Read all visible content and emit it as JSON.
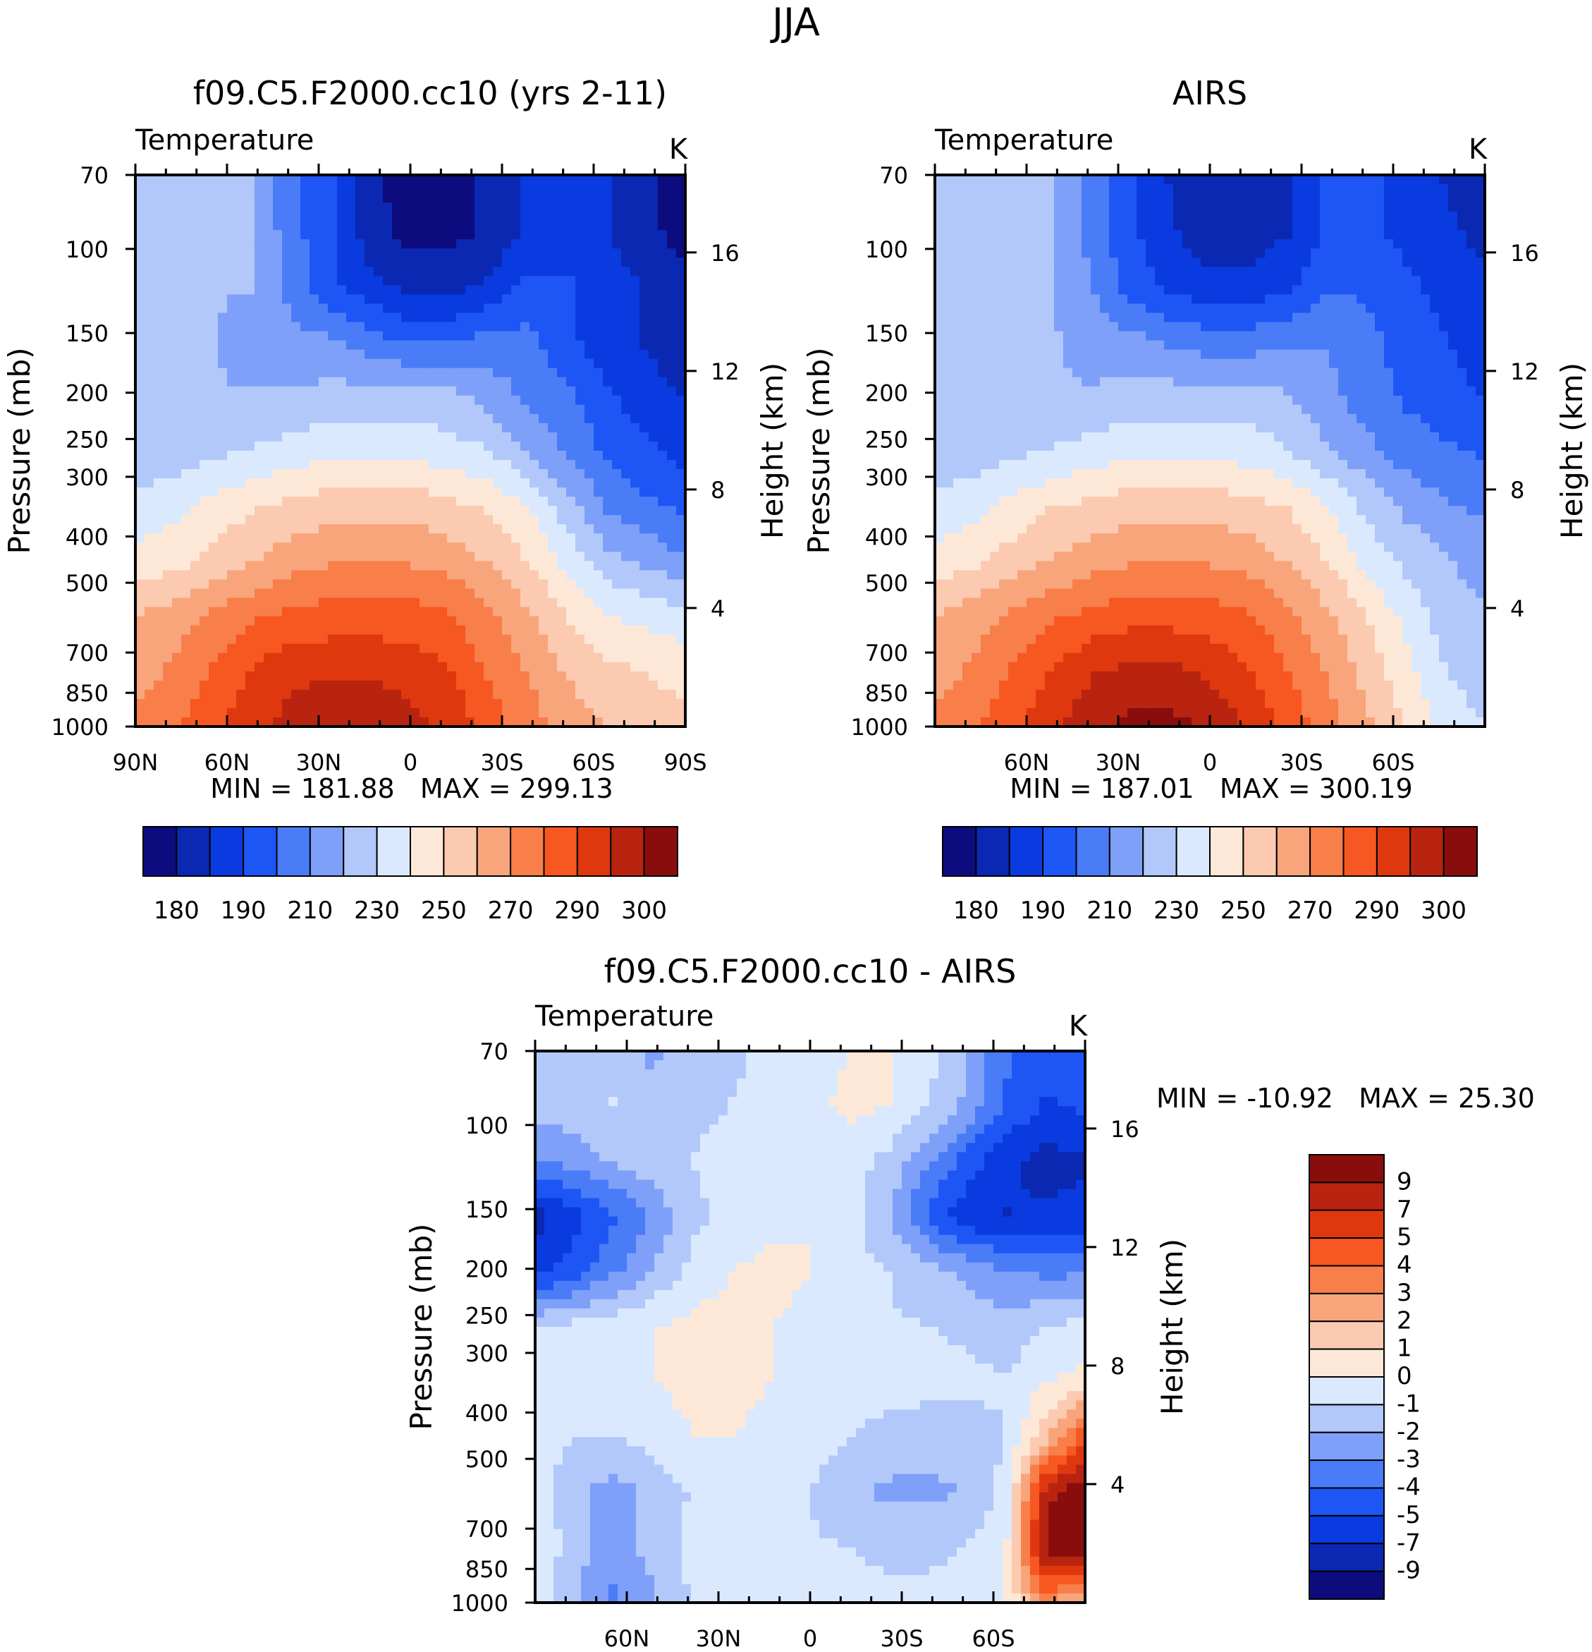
{
  "season": "JJA",
  "chart_data": [
    {
      "type": "heatmap",
      "title": "f09.C5.F2000.cc10 (yrs 2-11)",
      "subtitle": "Temperature",
      "units": "K",
      "xlabel": "",
      "ylabel": "Pressure (mb)",
      "ylabel_right": "Height (km)",
      "xticks": [
        "90N",
        "60N",
        "30N",
        "0",
        "30S",
        "60S",
        "90S"
      ],
      "yticks": [
        "70",
        "100",
        "150",
        "200",
        "250",
        "300",
        "400",
        "500",
        "700",
        "850",
        "1000"
      ],
      "yticks_right": [
        "16",
        "12",
        "8",
        "4"
      ],
      "stats": "MIN = 181.88   MAX = 299.13",
      "colorbar_labels": [
        "180",
        "190",
        "210",
        "230",
        "250",
        "270",
        "290",
        "300"
      ],
      "colorbar_colors": [
        "#0c0c7e",
        "#0a28b2",
        "#0a3be0",
        "#1e56f5",
        "#4a7cf7",
        "#7ea0f8",
        "#b2c8fb",
        "#dae9fe",
        "#fde8d8",
        "#fbcab0",
        "#f9a57c",
        "#f87e4a",
        "#f75720",
        "#e0380e",
        "#b82410",
        "#8a0d0d"
      ],
      "field": [
        [
          0.38,
          0.38,
          0.38,
          0.38,
          0.26,
          0.2,
          0.07,
          0.04,
          0.04,
          0.07,
          0.13,
          0.15,
          0.13,
          0.08,
          0.0
        ],
        [
          0.38,
          0.38,
          0.38,
          0.38,
          0.27,
          0.2,
          0.09,
          0.04,
          0.04,
          0.07,
          0.14,
          0.15,
          0.13,
          0.08,
          0.03
        ],
        [
          0.38,
          0.38,
          0.38,
          0.38,
          0.29,
          0.2,
          0.14,
          0.1,
          0.1,
          0.14,
          0.2,
          0.2,
          0.15,
          0.12,
          0.08
        ],
        [
          0.38,
          0.38,
          0.38,
          0.33,
          0.33,
          0.32,
          0.27,
          0.24,
          0.24,
          0.27,
          0.27,
          0.2,
          0.15,
          0.12,
          0.09
        ],
        [
          0.38,
          0.38,
          0.38,
          0.38,
          0.38,
          0.4,
          0.4,
          0.4,
          0.4,
          0.35,
          0.3,
          0.26,
          0.2,
          0.15,
          0.12
        ],
        [
          0.38,
          0.4,
          0.42,
          0.44,
          0.46,
          0.48,
          0.48,
          0.48,
          0.46,
          0.44,
          0.37,
          0.3,
          0.24,
          0.2,
          0.16
        ],
        [
          0.46,
          0.48,
          0.52,
          0.56,
          0.58,
          0.6,
          0.6,
          0.6,
          0.58,
          0.55,
          0.5,
          0.4,
          0.3,
          0.26,
          0.24
        ],
        [
          0.52,
          0.54,
          0.58,
          0.62,
          0.66,
          0.68,
          0.68,
          0.68,
          0.66,
          0.62,
          0.56,
          0.48,
          0.4,
          0.36,
          0.32
        ],
        [
          0.62,
          0.66,
          0.7,
          0.74,
          0.77,
          0.78,
          0.78,
          0.78,
          0.76,
          0.7,
          0.64,
          0.56,
          0.5,
          0.48,
          0.46
        ],
        [
          0.66,
          0.7,
          0.76,
          0.82,
          0.86,
          0.86,
          0.86,
          0.85,
          0.82,
          0.74,
          0.68,
          0.62,
          0.58,
          0.56,
          0.54
        ],
        [
          0.7,
          0.74,
          0.8,
          0.86,
          0.9,
          0.94,
          0.94,
          0.9,
          0.86,
          0.78,
          0.72,
          0.66,
          0.62,
          0.6,
          0.58
        ]
      ]
    },
    {
      "type": "heatmap",
      "title": "AIRS",
      "subtitle": "Temperature",
      "units": "K",
      "xlabel": "",
      "ylabel": "Pressure (mb)",
      "ylabel_right": "Height (km)",
      "xticks": [
        "60N",
        "30N",
        "0",
        "30S",
        "60S"
      ],
      "yticks": [
        "70",
        "100",
        "150",
        "200",
        "250",
        "300",
        "400",
        "500",
        "700",
        "850",
        "1000"
      ],
      "yticks_right": [
        "16",
        "12",
        "8",
        "4"
      ],
      "stats": "MIN = 187.01   MAX = 300.19",
      "colorbar_labels": [
        "180",
        "190",
        "210",
        "230",
        "250",
        "270",
        "290",
        "300"
      ],
      "colorbar_colors": [
        "#0c0c7e",
        "#0a28b2",
        "#0a3be0",
        "#1e56f5",
        "#4a7cf7",
        "#7ea0f8",
        "#b2c8fb",
        "#dae9fe",
        "#fde8d8",
        "#fbcab0",
        "#f9a57c",
        "#f87e4a",
        "#f75720",
        "#e0380e",
        "#b82410",
        "#8a0d0d"
      ],
      "field": [
        [
          0.4,
          0.38,
          0.38,
          0.38,
          0.28,
          0.2,
          0.12,
          0.09,
          0.09,
          0.12,
          0.2,
          0.2,
          0.16,
          0.12,
          0.08
        ],
        [
          0.42,
          0.38,
          0.38,
          0.38,
          0.29,
          0.2,
          0.13,
          0.09,
          0.09,
          0.12,
          0.2,
          0.2,
          0.17,
          0.14,
          0.1
        ],
        [
          0.44,
          0.4,
          0.38,
          0.38,
          0.31,
          0.22,
          0.17,
          0.14,
          0.14,
          0.17,
          0.24,
          0.24,
          0.2,
          0.17,
          0.14
        ],
        [
          0.44,
          0.4,
          0.38,
          0.38,
          0.35,
          0.33,
          0.3,
          0.28,
          0.28,
          0.3,
          0.31,
          0.27,
          0.22,
          0.19,
          0.16
        ],
        [
          0.38,
          0.38,
          0.38,
          0.38,
          0.38,
          0.4,
          0.4,
          0.4,
          0.4,
          0.38,
          0.33,
          0.28,
          0.24,
          0.21,
          0.18
        ],
        [
          0.38,
          0.4,
          0.42,
          0.44,
          0.46,
          0.48,
          0.48,
          0.48,
          0.47,
          0.44,
          0.38,
          0.33,
          0.28,
          0.26,
          0.24
        ],
        [
          0.46,
          0.48,
          0.52,
          0.56,
          0.58,
          0.6,
          0.6,
          0.6,
          0.58,
          0.56,
          0.5,
          0.42,
          0.36,
          0.32,
          0.3
        ],
        [
          0.52,
          0.55,
          0.59,
          0.63,
          0.66,
          0.68,
          0.68,
          0.68,
          0.66,
          0.62,
          0.56,
          0.48,
          0.42,
          0.38,
          0.35
        ],
        [
          0.62,
          0.66,
          0.7,
          0.74,
          0.77,
          0.79,
          0.79,
          0.78,
          0.76,
          0.7,
          0.64,
          0.56,
          0.48,
          0.4,
          0.38
        ],
        [
          0.66,
          0.7,
          0.76,
          0.82,
          0.87,
          0.89,
          0.89,
          0.86,
          0.82,
          0.75,
          0.68,
          0.6,
          0.52,
          0.44,
          0.4
        ],
        [
          0.7,
          0.74,
          0.8,
          0.86,
          0.92,
          0.96,
          0.96,
          0.92,
          0.87,
          0.79,
          0.72,
          0.64,
          0.56,
          0.48,
          0.44
        ]
      ]
    },
    {
      "type": "heatmap",
      "title": "f09.C5.F2000.cc10 - AIRS",
      "subtitle": "Temperature",
      "units": "K",
      "xlabel": "",
      "ylabel": "Pressure (mb)",
      "ylabel_right": "Height (km)",
      "xticks": [
        "60N",
        "30N",
        "0",
        "30S",
        "60S"
      ],
      "yticks": [
        "70",
        "100",
        "150",
        "200",
        "250",
        "300",
        "400",
        "500",
        "700",
        "850",
        "1000"
      ],
      "yticks_right": [
        "16",
        "12",
        "8",
        "4"
      ],
      "stats": "MIN = -10.92   MAX = 25.30",
      "colorbar_labels": [
        "9",
        "7",
        "5",
        "4",
        "3",
        "2",
        "1",
        "0",
        "-1",
        "-2",
        "-3",
        "-4",
        "-5",
        "-7",
        "-9"
      ],
      "colorbar_colors": [
        "#8a0d0d",
        "#b82410",
        "#e0380e",
        "#f75720",
        "#f87e4a",
        "#f9a57c",
        "#fbcab0",
        "#fde8d8",
        "#dae9fe",
        "#b2c8fb",
        "#7ea0f8",
        "#4a7cf7",
        "#1e56f5",
        "#0a3be0",
        "#0a28b2",
        "#0c0c7e"
      ],
      "field": [
        [
          0.42,
          0.4,
          0.42,
          0.36,
          0.4,
          0.42,
          0.46,
          0.46,
          0.5,
          0.5,
          0.46,
          0.38,
          0.26,
          0.2,
          0.22
        ],
        [
          0.4,
          0.42,
          0.44,
          0.4,
          0.42,
          0.44,
          0.46,
          0.48,
          0.52,
          0.5,
          0.44,
          0.36,
          0.24,
          0.18,
          0.2
        ],
        [
          0.3,
          0.34,
          0.38,
          0.42,
          0.44,
          0.46,
          0.46,
          0.46,
          0.46,
          0.42,
          0.32,
          0.22,
          0.14,
          0.1,
          0.12
        ],
        [
          0.1,
          0.16,
          0.24,
          0.32,
          0.42,
          0.46,
          0.48,
          0.5,
          0.46,
          0.38,
          0.24,
          0.14,
          0.12,
          0.14,
          0.14
        ],
        [
          0.16,
          0.22,
          0.3,
          0.38,
          0.46,
          0.5,
          0.52,
          0.5,
          0.46,
          0.44,
          0.4,
          0.36,
          0.32,
          0.3,
          0.3
        ],
        [
          0.44,
          0.46,
          0.48,
          0.5,
          0.52,
          0.52,
          0.5,
          0.48,
          0.46,
          0.44,
          0.44,
          0.42,
          0.4,
          0.44,
          0.46
        ],
        [
          0.5,
          0.46,
          0.46,
          0.5,
          0.52,
          0.52,
          0.5,
          0.48,
          0.46,
          0.46,
          0.46,
          0.46,
          0.44,
          0.5,
          0.52
        ],
        [
          0.46,
          0.44,
          0.44,
          0.46,
          0.5,
          0.5,
          0.48,
          0.46,
          0.44,
          0.42,
          0.4,
          0.4,
          0.44,
          0.6,
          0.8
        ],
        [
          0.46,
          0.4,
          0.34,
          0.4,
          0.44,
          0.46,
          0.44,
          0.44,
          0.4,
          0.36,
          0.36,
          0.38,
          0.46,
          0.92,
          0.98
        ],
        [
          0.5,
          0.4,
          0.34,
          0.4,
          0.46,
          0.46,
          0.44,
          0.44,
          0.44,
          0.42,
          0.42,
          0.44,
          0.5,
          0.96,
          0.98
        ],
        [
          0.48,
          0.38,
          0.3,
          0.36,
          0.44,
          0.46,
          0.46,
          0.46,
          0.46,
          0.46,
          0.46,
          0.46,
          0.5,
          0.7,
          0.6
        ]
      ]
    }
  ]
}
